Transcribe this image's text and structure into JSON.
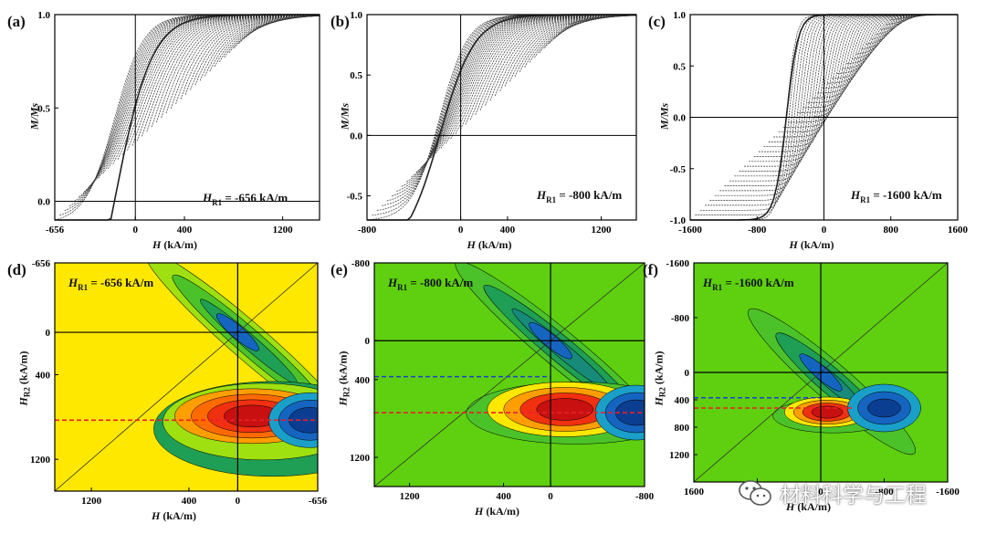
{
  "chart_data": [
    {
      "id": "a",
      "type": "line",
      "letter": "(a)",
      "xlabel": "H (kA/m)",
      "ylabel": "M/Ms",
      "hr_label": "-656 kA/m",
      "xlim": [
        -656,
        1500
      ],
      "ylim": [
        -0.1,
        1.0
      ],
      "xticks": [
        "-656",
        "0",
        "400",
        "1200"
      ],
      "xtick_values": [
        -656,
        0,
        400,
        1200
      ],
      "yticks": [
        "0.0",
        "0.5",
        "1.0"
      ],
      "ytick_values": [
        0,
        0.5,
        1.0
      ],
      "hc": -170,
      "width": 300,
      "msat_start": 0.92,
      "m_at_min": -0.1
    },
    {
      "id": "b",
      "type": "line",
      "letter": "(b)",
      "xlabel": "H (kA/m)",
      "ylabel": "M/Ms",
      "hr_label": "-800 kA/m",
      "xlim": [
        -800,
        1500
      ],
      "ylim": [
        -0.7,
        1.0
      ],
      "xticks": [
        "-800",
        "0",
        "400",
        "1200"
      ],
      "xtick_values": [
        -800,
        0,
        400,
        1200
      ],
      "yticks": [
        "-0.5",
        "0.0",
        "0.5",
        "1.0"
      ],
      "ytick_values": [
        -0.5,
        0,
        0.5,
        1.0
      ],
      "hc": -180,
      "width": 300,
      "msat_start": 0.92,
      "m_at_min": -0.7
    },
    {
      "id": "c",
      "type": "line",
      "letter": "(c)",
      "xlabel": "H (kA/m)",
      "ylabel": "M/Ms",
      "hr_label": "-1600 kA/m",
      "xlim": [
        -1600,
        1600
      ],
      "ylim": [
        -1.0,
        1.0
      ],
      "xticks": [
        "-1600",
        "-800",
        "0",
        "800",
        "1600"
      ],
      "xtick_values": [
        -1600,
        -800,
        0,
        800,
        1600
      ],
      "yticks": [
        "-1.0",
        "-0.5",
        "0.0",
        "0.5",
        "1.0"
      ],
      "ytick_values": [
        -1,
        -0.5,
        0,
        0.5,
        1.0
      ],
      "hc": -450,
      "width": 140,
      "msat_start": 0.95,
      "m_at_min": -1.0
    },
    {
      "id": "d",
      "type": "heatmap",
      "letter": "(d)",
      "xlabel": "H (kA/m)",
      "ylabel": "HR2 (kA/m)",
      "hr_label": "-656 kA/m",
      "xlim": [
        1500,
        -656
      ],
      "ylim": [
        -656,
        1500
      ],
      "xticks": [
        "1200",
        "400",
        "0",
        "-656"
      ],
      "xtick_values": [
        1200,
        400,
        0,
        -656
      ],
      "yticks": [
        "-656",
        "0",
        "400",
        "1200"
      ],
      "ytick_values": [
        -656,
        0,
        400,
        1200
      ],
      "background": "#ffe800",
      "blue_dashed_at": null,
      "red_dashed_at": 830
    },
    {
      "id": "e",
      "type": "heatmap",
      "letter": "(e)",
      "xlabel": "H (kA/m)",
      "ylabel": "HR2 (kA/m)",
      "hr_label": "-800 kA/m",
      "xlim": [
        1500,
        -800
      ],
      "ylim": [
        -800,
        1500
      ],
      "xticks": [
        "1200",
        "400",
        "0",
        "-800"
      ],
      "xtick_values": [
        1200,
        400,
        0,
        -800
      ],
      "yticks": [
        "-800",
        "0",
        "400",
        "1200"
      ],
      "ytick_values": [
        -800,
        0,
        400,
        1200
      ],
      "background": "#5ed00f",
      "blue_dashed_at": 370,
      "red_dashed_at": 740
    },
    {
      "id": "f",
      "type": "heatmap",
      "letter": "(f)",
      "xlabel": "H (kA/m)",
      "ylabel": "HR2 (kA/m)",
      "hr_label": "-1600 kA/m",
      "xlim": [
        1600,
        -1600
      ],
      "ylim": [
        -1600,
        1600
      ],
      "xticks": [
        "1600",
        "800",
        "0",
        "-800",
        "-1600"
      ],
      "xtick_values": [
        1600,
        800,
        0,
        -800,
        -1600
      ],
      "yticks": [
        "-1600",
        "-800",
        "0",
        "400",
        "800",
        "1200"
      ],
      "ytick_values": [
        -1600,
        -800,
        0,
        400,
        800,
        1200
      ],
      "background": "#5ed00f",
      "blue_dashed_at": 370,
      "red_dashed_at": 520
    }
  ],
  "watermark": {
    "text": "材料科学与工程",
    "icon": "wechat-icon"
  }
}
